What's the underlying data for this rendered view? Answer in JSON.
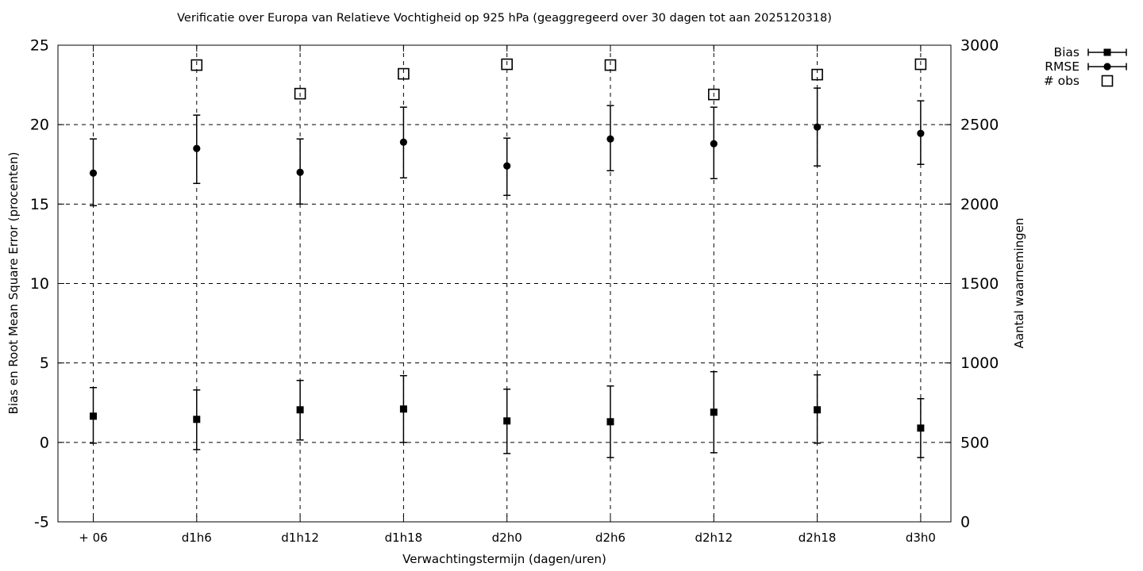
{
  "chart_data": {
    "type": "scatter",
    "title": "Verificatie over Europa van Relatieve Vochtigheid op 925 hPa (geaggregeerd over 30 dagen tot aan 2025120318)",
    "xlabel": "Verwachtingstermijn (dagen/uren)",
    "categories": [
      "+ 06",
      "d1h6",
      "d1h12",
      "d1h18",
      "d2h0",
      "d2h6",
      "d2h12",
      "d2h18",
      "d3h0"
    ],
    "left_axis": {
      "label": "Bias en Root Mean Square Error (procenten)",
      "min": -5,
      "max": 25,
      "ticks": [
        -5,
        0,
        5,
        10,
        15,
        20,
        25
      ]
    },
    "right_axis": {
      "label": "Aantal waarnemingen",
      "min": 0,
      "max": 3000,
      "ticks": [
        0,
        500,
        1000,
        1500,
        2000,
        2500,
        3000
      ]
    },
    "grid": true,
    "legend_position": "top-right-outside",
    "colors": {
      "foreground": "#000000",
      "background": "#ffffff"
    },
    "series": [
      {
        "name": "Bias",
        "axis": "left",
        "marker": "filled-square",
        "values": [
          1.65,
          1.45,
          2.05,
          2.1,
          1.35,
          1.3,
          1.9,
          2.05,
          0.9
        ],
        "err_low": [
          -0.05,
          -0.45,
          0.15,
          0.0,
          -0.7,
          -0.95,
          -0.65,
          -0.05,
          -0.95
        ],
        "err_high": [
          3.45,
          3.3,
          3.9,
          4.2,
          3.35,
          3.55,
          4.45,
          4.25,
          2.75
        ]
      },
      {
        "name": "RMSE",
        "axis": "left",
        "marker": "filled-circle",
        "values": [
          16.95,
          18.5,
          17.0,
          18.9,
          17.4,
          19.1,
          18.8,
          19.85,
          19.45
        ],
        "err_low": [
          14.9,
          16.3,
          15.0,
          16.65,
          15.55,
          17.1,
          16.6,
          17.4,
          17.5
        ],
        "err_high": [
          19.1,
          20.6,
          19.1,
          21.1,
          19.15,
          21.2,
          21.1,
          22.3,
          21.5
        ]
      },
      {
        "name": "# obs",
        "axis": "right",
        "marker": "open-square",
        "values": [
          null,
          2875,
          2695,
          2820,
          2880,
          2875,
          2690,
          2815,
          2880
        ]
      }
    ]
  }
}
